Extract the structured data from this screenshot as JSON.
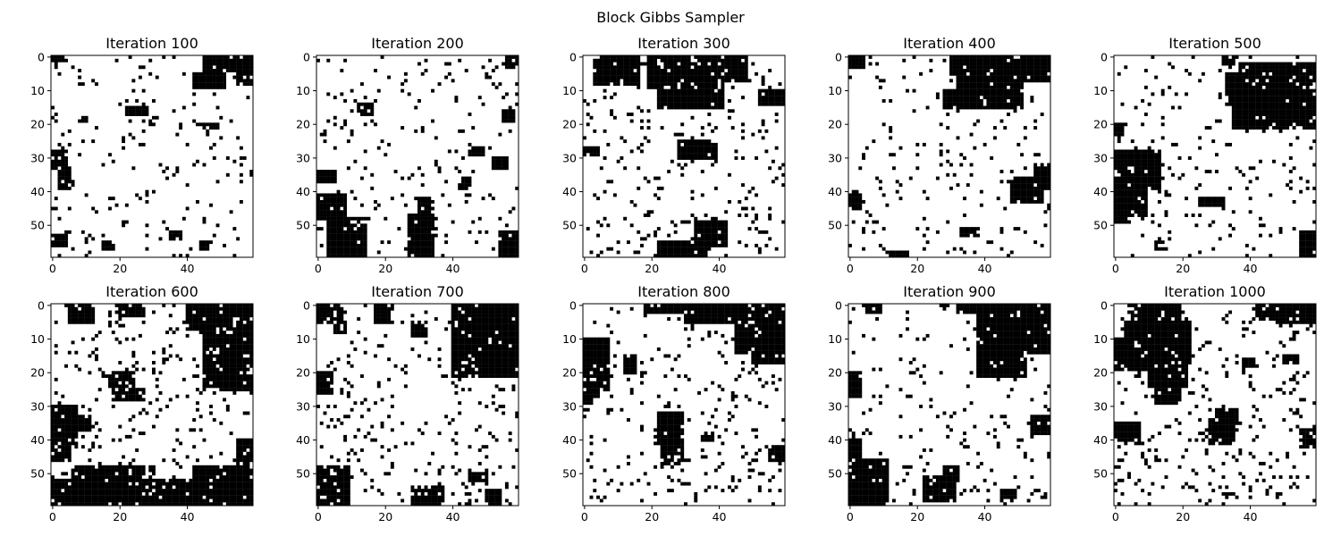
{
  "figure": {
    "title": "Block Gibbs Sampler"
  },
  "chart_data": {
    "type": "heatmap",
    "colormap": {
      "1": "#ffffff",
      "-1": "#000000"
    },
    "grid_size": 60,
    "xlim": [
      0,
      59
    ],
    "ylim": [
      59,
      0
    ],
    "x_ticks": [
      0,
      20,
      40
    ],
    "y_ticks": [
      0,
      10,
      20,
      30,
      40,
      50
    ],
    "panels": [
      {
        "title": "Iteration 100",
        "black_regions": [
          [
            0,
            0,
            4,
            2
          ],
          [
            45,
            0,
            15,
            5
          ],
          [
            42,
            5,
            10,
            5
          ],
          [
            55,
            5,
            5,
            4
          ],
          [
            22,
            15,
            7,
            3
          ],
          [
            0,
            28,
            5,
            6
          ],
          [
            2,
            33,
            4,
            7
          ],
          [
            0,
            53,
            5,
            4
          ],
          [
            35,
            52,
            4,
            3
          ],
          [
            15,
            55,
            4,
            3
          ],
          [
            44,
            55,
            3,
            3
          ],
          [
            8,
            18,
            3,
            2
          ],
          [
            45,
            20,
            5,
            2
          ]
        ],
        "density": 0.05,
        "seed": 11
      },
      {
        "title": "Iteration 200",
        "black_regions": [
          [
            56,
            0,
            4,
            4
          ],
          [
            12,
            14,
            5,
            4
          ],
          [
            0,
            34,
            6,
            4
          ],
          [
            0,
            41,
            9,
            8
          ],
          [
            3,
            48,
            12,
            12
          ],
          [
            27,
            47,
            8,
            13
          ],
          [
            30,
            42,
            4,
            6
          ],
          [
            42,
            36,
            4,
            4
          ],
          [
            45,
            27,
            5,
            3
          ],
          [
            52,
            30,
            5,
            4
          ],
          [
            55,
            16,
            4,
            4
          ],
          [
            54,
            52,
            6,
            8
          ]
        ],
        "density": 0.05,
        "seed": 23
      },
      {
        "title": "Iteration 300",
        "black_regions": [
          [
            3,
            0,
            14,
            9
          ],
          [
            19,
            0,
            15,
            10
          ],
          [
            22,
            5,
            20,
            11
          ],
          [
            33,
            0,
            16,
            8
          ],
          [
            28,
            25,
            12,
            6
          ],
          [
            22,
            55,
            15,
            5
          ],
          [
            33,
            49,
            10,
            8
          ],
          [
            52,
            10,
            8,
            5
          ],
          [
            0,
            27,
            5,
            3
          ]
        ],
        "density": 0.07,
        "seed": 37
      },
      {
        "title": "Iteration 400",
        "black_regions": [
          [
            0,
            0,
            5,
            4
          ],
          [
            30,
            0,
            14,
            6
          ],
          [
            34,
            0,
            26,
            8
          ],
          [
            32,
            6,
            20,
            10
          ],
          [
            28,
            10,
            18,
            6
          ],
          [
            48,
            36,
            10,
            8
          ],
          [
            55,
            32,
            5,
            8
          ],
          [
            0,
            40,
            4,
            6
          ],
          [
            33,
            51,
            6,
            3
          ],
          [
            12,
            58,
            6,
            2
          ]
        ],
        "density": 0.05,
        "seed": 41
      },
      {
        "title": "Iteration 500",
        "black_regions": [
          [
            32,
            0,
            4,
            3
          ],
          [
            33,
            5,
            25,
            10
          ],
          [
            35,
            10,
            25,
            12
          ],
          [
            37,
            2,
            23,
            6
          ],
          [
            0,
            28,
            14,
            12
          ],
          [
            2,
            36,
            8,
            12
          ],
          [
            0,
            35,
            4,
            15
          ],
          [
            25,
            42,
            8,
            3
          ],
          [
            55,
            52,
            5,
            8
          ],
          [
            0,
            20,
            3,
            4
          ],
          [
            12,
            55,
            3,
            3
          ]
        ],
        "density": 0.06,
        "seed": 53
      },
      {
        "title": "Iteration 600",
        "black_regions": [
          [
            5,
            0,
            8,
            6
          ],
          [
            20,
            0,
            8,
            4
          ],
          [
            45,
            0,
            15,
            25
          ],
          [
            40,
            0,
            20,
            8
          ],
          [
            50,
            20,
            10,
            6
          ],
          [
            17,
            20,
            8,
            5
          ],
          [
            18,
            25,
            10,
            4
          ],
          [
            0,
            30,
            8,
            12
          ],
          [
            2,
            33,
            10,
            5
          ],
          [
            0,
            42,
            6,
            5
          ],
          [
            0,
            52,
            60,
            8
          ],
          [
            6,
            48,
            22,
            12
          ],
          [
            42,
            48,
            18,
            12
          ],
          [
            55,
            40,
            5,
            12
          ]
        ],
        "density": 0.07,
        "seed": 67
      },
      {
        "title": "Iteration 700",
        "black_regions": [
          [
            0,
            0,
            8,
            6
          ],
          [
            5,
            5,
            4,
            4
          ],
          [
            17,
            0,
            6,
            6
          ],
          [
            40,
            0,
            20,
            22
          ],
          [
            43,
            0,
            17,
            8
          ],
          [
            46,
            18,
            14,
            4
          ],
          [
            28,
            5,
            5,
            5
          ],
          [
            0,
            20,
            5,
            7
          ],
          [
            0,
            48,
            10,
            12
          ],
          [
            28,
            54,
            10,
            6
          ],
          [
            45,
            50,
            6,
            3
          ],
          [
            50,
            55,
            5,
            5
          ]
        ],
        "density": 0.07,
        "seed": 79
      },
      {
        "title": "Iteration 800",
        "black_regions": [
          [
            0,
            10,
            8,
            16
          ],
          [
            0,
            15,
            5,
            13
          ],
          [
            12,
            15,
            4,
            6
          ],
          [
            18,
            0,
            12,
            3
          ],
          [
            30,
            0,
            20,
            6
          ],
          [
            45,
            0,
            15,
            15
          ],
          [
            50,
            10,
            10,
            8
          ],
          [
            22,
            32,
            8,
            10
          ],
          [
            23,
            40,
            7,
            8
          ],
          [
            25,
            36,
            5,
            5
          ],
          [
            0,
            23,
            3,
            7
          ],
          [
            55,
            42,
            5,
            5
          ],
          [
            35,
            38,
            4,
            3
          ]
        ],
        "density": 0.07,
        "seed": 89
      },
      {
        "title": "Iteration 900",
        "black_regions": [
          [
            5,
            0,
            5,
            3
          ],
          [
            32,
            0,
            6,
            3
          ],
          [
            38,
            0,
            22,
            15
          ],
          [
            38,
            10,
            12,
            12
          ],
          [
            38,
            0,
            15,
            22
          ],
          [
            0,
            20,
            4,
            8
          ],
          [
            0,
            40,
            4,
            10
          ],
          [
            0,
            46,
            12,
            14
          ],
          [
            22,
            51,
            10,
            8
          ],
          [
            28,
            48,
            5,
            5
          ],
          [
            54,
            33,
            6,
            6
          ],
          [
            45,
            55,
            5,
            3
          ]
        ],
        "density": 0.05,
        "seed": 97
      },
      {
        "title": "Iteration 1000",
        "black_regions": [
          [
            5,
            0,
            15,
            8
          ],
          [
            42,
            0,
            18,
            5
          ],
          [
            48,
            0,
            12,
            6
          ],
          [
            3,
            5,
            20,
            13
          ],
          [
            0,
            10,
            20,
            10
          ],
          [
            10,
            15,
            12,
            10
          ],
          [
            12,
            20,
            8,
            10
          ],
          [
            30,
            31,
            7,
            7
          ],
          [
            28,
            34,
            8,
            8
          ],
          [
            0,
            35,
            8,
            6
          ],
          [
            55,
            37,
            5,
            6
          ],
          [
            38,
            16,
            4,
            3
          ],
          [
            50,
            15,
            5,
            3
          ]
        ],
        "density": 0.08,
        "seed": 103
      }
    ]
  }
}
